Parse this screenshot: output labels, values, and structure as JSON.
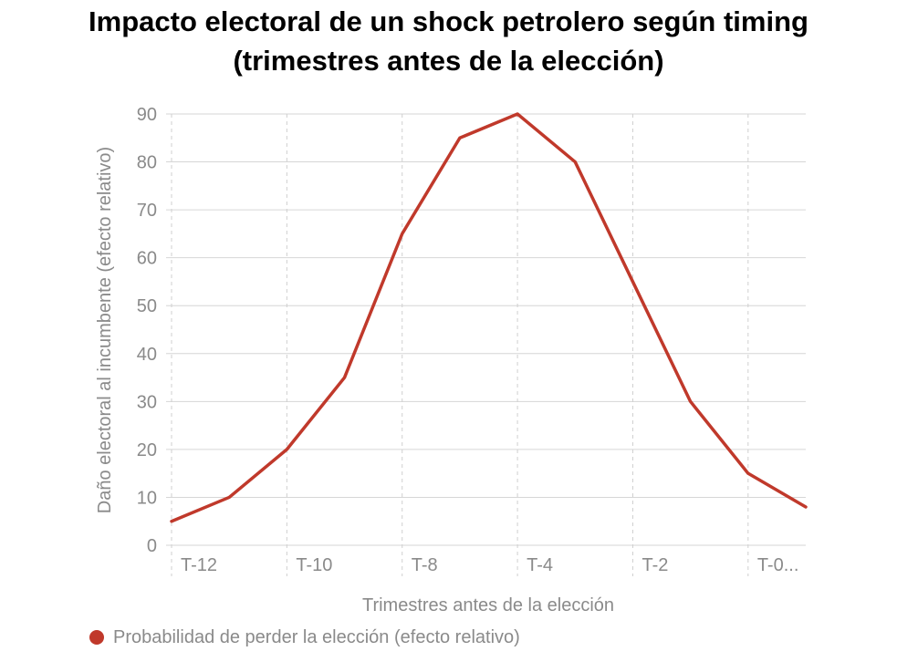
{
  "chart_data": {
    "type": "line",
    "title_line1": "Impacto electoral de un shock petrolero según timing",
    "title_line2": "(trimestres antes de la elección)",
    "xlabel": "Trimestres antes de la elección",
    "ylabel": "Daño electoral al incumbente (efecto relativo)",
    "ylim": [
      0,
      90
    ],
    "yticks": [
      0,
      10,
      20,
      30,
      40,
      50,
      60,
      70,
      80,
      90
    ],
    "x_tick_labels": [
      "T-12",
      "T-10",
      "T-8",
      "T-4",
      "T-2",
      "T-0..."
    ],
    "grid": true,
    "legend_position": "bottom-left",
    "series": [
      {
        "name": "Probabilidad de perder la elección (efecto relativo)",
        "color": "#c0392b",
        "values": [
          5,
          10,
          20,
          35,
          65,
          85,
          90,
          80,
          55,
          30,
          15,
          8
        ]
      }
    ]
  }
}
